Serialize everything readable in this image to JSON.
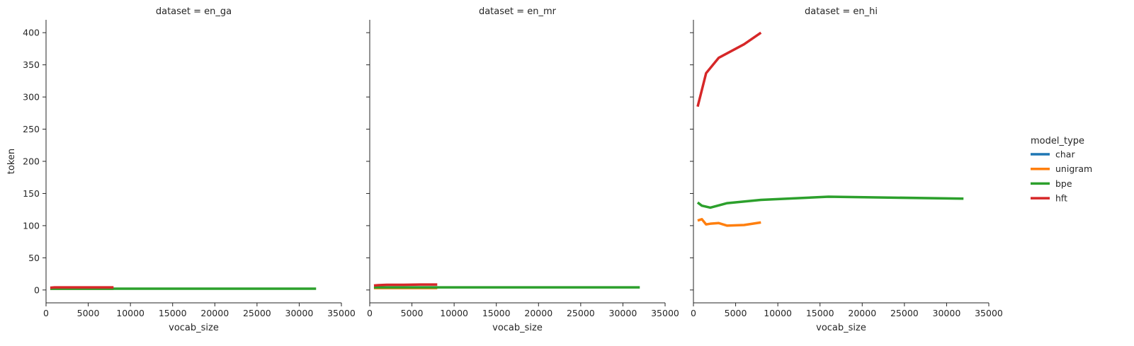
{
  "chart_data": {
    "type": "line",
    "layout": "facet-grid",
    "facet_prefix": "dataset = ",
    "xlabel": "vocab_size",
    "ylabel": "token",
    "xlim": [
      0,
      35000
    ],
    "ylim": [
      -20,
      420
    ],
    "x_ticks": [
      0,
      5000,
      10000,
      15000,
      20000,
      25000,
      30000,
      35000
    ],
    "y_ticks": [
      0,
      50,
      100,
      150,
      200,
      250,
      300,
      350,
      400
    ],
    "shared_y": true,
    "grid": false,
    "legend": {
      "title": "model_type",
      "placement": "right",
      "entries": [
        {
          "name": "char",
          "color": "#1f77b4"
        },
        {
          "name": "unigram",
          "color": "#ff7f0e"
        },
        {
          "name": "bpe",
          "color": "#2ca02c"
        },
        {
          "name": "hft",
          "color": "#d62728"
        }
      ]
    },
    "panels": [
      {
        "dataset": "en_ga",
        "series": [
          {
            "name": "char",
            "x": [
              500,
              1000,
              2000,
              4000,
              8000
            ],
            "y": [
              2,
              2,
              2,
              2,
              2
            ]
          },
          {
            "name": "unigram",
            "x": [
              500,
              1000,
              2000,
              3000,
              4000,
              6000,
              8000
            ],
            "y": [
              2,
              2,
              2,
              2,
              2,
              2,
              2
            ]
          },
          {
            "name": "bpe",
            "x": [
              500,
              1000,
              2000,
              4000,
              8000,
              16000,
              32000
            ],
            "y": [
              2,
              2,
              2,
              2,
              2,
              2,
              2
            ]
          },
          {
            "name": "hft",
            "x": [
              500,
              1000,
              2000,
              3000,
              4000,
              6000,
              8000
            ],
            "y": [
              3.5,
              4,
              4,
              4,
              4,
              4,
              4
            ]
          }
        ]
      },
      {
        "dataset": "en_mr",
        "series": [
          {
            "name": "char",
            "x": [
              500,
              1000,
              2000,
              4000,
              8000
            ],
            "y": [
              4,
              4,
              4,
              4,
              4
            ]
          },
          {
            "name": "unigram",
            "x": [
              500,
              1000,
              2000,
              3000,
              4000,
              6000,
              8000
            ],
            "y": [
              3,
              3,
              3,
              3,
              3,
              3,
              3
            ]
          },
          {
            "name": "bpe",
            "x": [
              500,
              1000,
              2000,
              4000,
              8000,
              16000,
              32000
            ],
            "y": [
              4,
              4,
              4,
              4,
              4,
              4,
              4
            ]
          },
          {
            "name": "hft",
            "x": [
              500,
              1000,
              2000,
              3000,
              4000,
              6000,
              8000
            ],
            "y": [
              7,
              7.5,
              8,
              8,
              8,
              8.5,
              8.5
            ]
          }
        ]
      },
      {
        "dataset": "en_hi",
        "series": [
          {
            "name": "char",
            "x": [],
            "y": []
          },
          {
            "name": "unigram",
            "x": [
              500,
              1000,
              1500,
              2000,
              3000,
              4000,
              6000,
              8000
            ],
            "y": [
              108,
              110,
              102,
              103,
              104,
              100,
              101,
              105
            ]
          },
          {
            "name": "bpe",
            "x": [
              500,
              1000,
              2000,
              4000,
              8000,
              16000,
              32000
            ],
            "y": [
              136,
              131,
              128,
              135,
              140,
              145,
              142
            ]
          },
          {
            "name": "hft",
            "x": [
              500,
              1500,
              3000,
              6000,
              8000
            ],
            "y": [
              285,
              337,
              361,
              382,
              400
            ]
          }
        ]
      }
    ]
  }
}
